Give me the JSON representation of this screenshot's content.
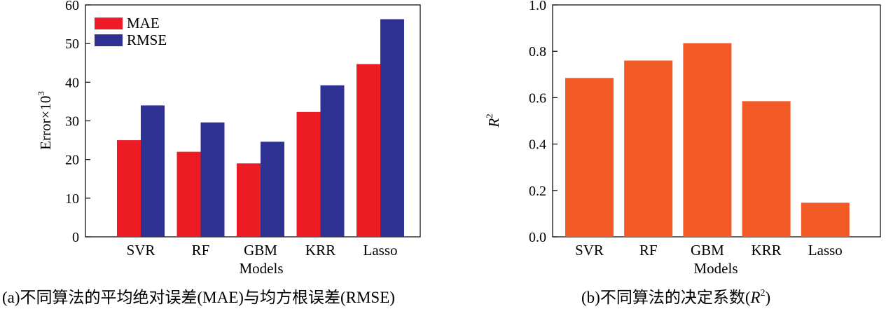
{
  "figure": {
    "caption_a": "(a)不同算法的平均绝对误差(MAE)与均方根误差(RMSE)",
    "caption_b_prefix": "(b)不同算法的决定系数(",
    "caption_b_var": "R",
    "caption_b_sup": "2",
    "caption_b_suffix": ")"
  },
  "chart_data": [
    {
      "type": "bar",
      "categories": [
        "SVR",
        "RF",
        "GBM",
        "KRR",
        "Lasso"
      ],
      "series": [
        {
          "name": "MAE",
          "color": "#ED1C24",
          "values": [
            25,
            22,
            19,
            32.3,
            44.7
          ]
        },
        {
          "name": "RMSE",
          "color": "#2E3192",
          "values": [
            34,
            29.6,
            24.6,
            39.2,
            56.3
          ]
        }
      ],
      "title": "",
      "xlabel": "Models",
      "ylabel_prefix": "Error×10",
      "ylabel_sup": "3",
      "ylim": [
        0,
        60
      ],
      "yticks": [
        "0",
        "10",
        "20",
        "30",
        "40",
        "50",
        "60"
      ],
      "grid": false,
      "legend": "top-left"
    },
    {
      "type": "bar",
      "categories": [
        "SVR",
        "RF",
        "GBM",
        "KRR",
        "Lasso"
      ],
      "series": [
        {
          "name": "R2",
          "color": "#F15A24",
          "values": [
            0.685,
            0.76,
            0.835,
            0.585,
            0.147
          ]
        }
      ],
      "title": "",
      "xlabel": "Models",
      "ylabel_var": "R",
      "ylabel_sup": "2",
      "ylim": [
        0,
        1.0
      ],
      "yticks": [
        "0.0",
        "0.2",
        "0.4",
        "0.6",
        "0.8",
        "1.0"
      ],
      "grid": false,
      "legend": "none"
    }
  ]
}
